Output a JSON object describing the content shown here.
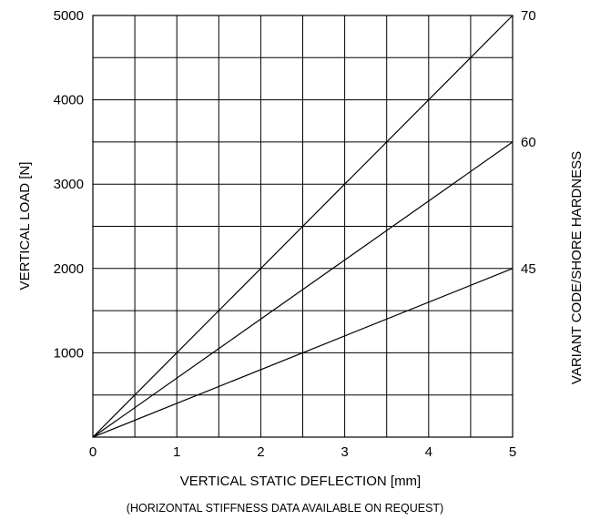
{
  "chart_data": {
    "type": "line",
    "title": "",
    "xlabel": "VERTICAL STATIC DEFLECTION [mm]",
    "ylabel": "VERTICAL LOAD [N]",
    "y2label": "VARIANT CODE/SHORE HARDNESS",
    "footnote": "(HORIZONTAL STIFFNESS DATA AVAILABLE ON REQUEST)",
    "xlim": [
      0,
      5
    ],
    "ylim": [
      0,
      5000
    ],
    "x_ticks": [
      "0",
      "1",
      "2",
      "3",
      "4",
      "5"
    ],
    "y_ticks": [
      "1000",
      "2000",
      "3000",
      "4000",
      "5000"
    ],
    "grid": true,
    "series": [
      {
        "name": "70",
        "x": [
          0,
          5
        ],
        "y": [
          0,
          5000
        ]
      },
      {
        "name": "60",
        "x": [
          0,
          5
        ],
        "y": [
          0,
          3500
        ]
      },
      {
        "name": "45",
        "x": [
          0,
          5
        ],
        "y": [
          0,
          2000
        ]
      }
    ]
  }
}
